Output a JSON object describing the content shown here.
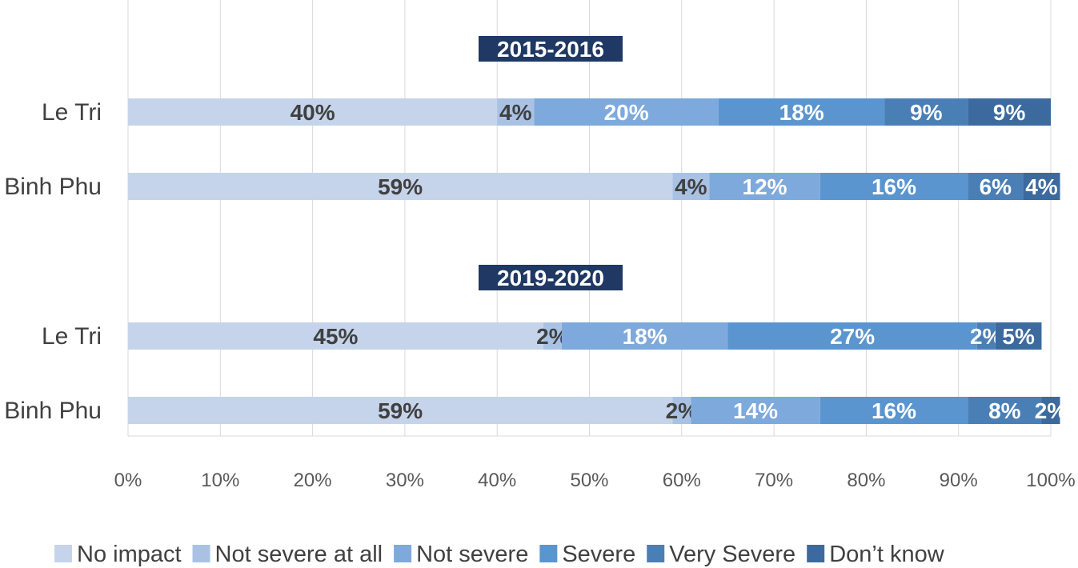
{
  "chart_data": {
    "type": "bar",
    "orientation": "horizontal",
    "stacked": "percent",
    "groups": [
      {
        "title": "2015-2016",
        "rows": [
          {
            "category": "Le Tri",
            "values": [
              40,
              4,
              20,
              18,
              9,
              9
            ]
          },
          {
            "category": "Binh Phu",
            "values": [
              59,
              4,
              12,
              16,
              6,
              4
            ]
          }
        ]
      },
      {
        "title": "2019-2020",
        "rows": [
          {
            "category": "Le Tri",
            "values": [
              45,
              2,
              18,
              27,
              2,
              5
            ]
          },
          {
            "category": "Binh Phu",
            "values": [
              59,
              2,
              14,
              16,
              8,
              2
            ]
          }
        ]
      }
    ],
    "series": [
      {
        "name": "No impact",
        "color": "#c5d4ea"
      },
      {
        "name": "Not severe at all",
        "color": "#a9c2e4"
      },
      {
        "name": "Not severe",
        "color": "#7ea9dc"
      },
      {
        "name": "Severe",
        "color": "#5b95cf"
      },
      {
        "name": "Very Severe",
        "color": "#4a7fb6"
      },
      {
        "name": "Don’t know",
        "color": "#3c6a9e"
      }
    ],
    "label_colors": [
      "#404040",
      "#404040",
      "#ffffff",
      "#ffffff",
      "#ffffff",
      "#ffffff"
    ],
    "x_ticks": [
      "0%",
      "10%",
      "20%",
      "30%",
      "40%",
      "50%",
      "60%",
      "70%",
      "80%",
      "90%",
      "100%"
    ],
    "xlim": [
      0,
      100
    ],
    "grid": true,
    "legend_position": "bottom",
    "title_badge_color": "#1f3864"
  }
}
